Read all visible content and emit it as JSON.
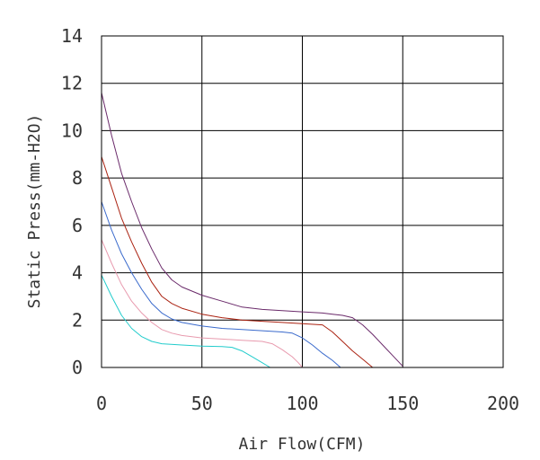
{
  "chart_data": {
    "type": "line",
    "title": "",
    "xlabel": "Air Flow(CFM)",
    "ylabel": "Static Press(mm-H2O)",
    "xlim": [
      0,
      200
    ],
    "ylim": [
      0,
      14
    ],
    "x_ticks": [
      0,
      50,
      100,
      150,
      200
    ],
    "y_ticks": [
      0,
      2,
      4,
      6,
      8,
      10,
      12,
      14
    ],
    "grid": true,
    "legend": "none",
    "series": [
      {
        "color": "#6a2a6a",
        "points": [
          [
            0,
            11.6
          ],
          [
            5,
            9.8
          ],
          [
            10,
            8.2
          ],
          [
            15,
            7.0
          ],
          [
            20,
            5.9
          ],
          [
            25,
            5.0
          ],
          [
            30,
            4.2
          ],
          [
            35,
            3.7
          ],
          [
            40,
            3.4
          ],
          [
            50,
            3.05
          ],
          [
            60,
            2.8
          ],
          [
            70,
            2.55
          ],
          [
            80,
            2.45
          ],
          [
            90,
            2.4
          ],
          [
            100,
            2.35
          ],
          [
            110,
            2.3
          ],
          [
            115,
            2.25
          ],
          [
            120,
            2.2
          ],
          [
            125,
            2.1
          ],
          [
            130,
            1.8
          ],
          [
            135,
            1.4
          ],
          [
            140,
            0.95
          ],
          [
            145,
            0.5
          ],
          [
            150,
            0.05
          ]
        ]
      },
      {
        "color": "#aa2211",
        "points": [
          [
            0,
            8.9
          ],
          [
            5,
            7.6
          ],
          [
            10,
            6.3
          ],
          [
            15,
            5.3
          ],
          [
            20,
            4.4
          ],
          [
            25,
            3.6
          ],
          [
            30,
            3.0
          ],
          [
            35,
            2.7
          ],
          [
            40,
            2.5
          ],
          [
            50,
            2.25
          ],
          [
            60,
            2.1
          ],
          [
            70,
            2.0
          ],
          [
            80,
            1.95
          ],
          [
            90,
            1.9
          ],
          [
            100,
            1.85
          ],
          [
            110,
            1.8
          ],
          [
            115,
            1.5
          ],
          [
            120,
            1.1
          ],
          [
            125,
            0.7
          ],
          [
            130,
            0.35
          ],
          [
            135,
            0.0
          ]
        ]
      },
      {
        "color": "#3a6acc",
        "points": [
          [
            0,
            7.0
          ],
          [
            5,
            5.8
          ],
          [
            10,
            4.8
          ],
          [
            15,
            4.0
          ],
          [
            20,
            3.3
          ],
          [
            25,
            2.7
          ],
          [
            30,
            2.3
          ],
          [
            35,
            2.05
          ],
          [
            40,
            1.9
          ],
          [
            50,
            1.75
          ],
          [
            60,
            1.65
          ],
          [
            70,
            1.6
          ],
          [
            80,
            1.55
          ],
          [
            90,
            1.5
          ],
          [
            95,
            1.45
          ],
          [
            100,
            1.25
          ],
          [
            105,
            0.95
          ],
          [
            110,
            0.6
          ],
          [
            115,
            0.3
          ],
          [
            119,
            0.0
          ]
        ]
      },
      {
        "color": "#e89aae",
        "points": [
          [
            0,
            5.4
          ],
          [
            5,
            4.4
          ],
          [
            10,
            3.5
          ],
          [
            15,
            2.8
          ],
          [
            20,
            2.3
          ],
          [
            25,
            1.9
          ],
          [
            30,
            1.6
          ],
          [
            35,
            1.45
          ],
          [
            40,
            1.35
          ],
          [
            50,
            1.25
          ],
          [
            60,
            1.2
          ],
          [
            70,
            1.15
          ],
          [
            80,
            1.1
          ],
          [
            85,
            1.0
          ],
          [
            90,
            0.75
          ],
          [
            95,
            0.45
          ],
          [
            98,
            0.2
          ],
          [
            100,
            0.0
          ]
        ]
      },
      {
        "color": "#22cccc",
        "points": [
          [
            0,
            3.9
          ],
          [
            5,
            3.0
          ],
          [
            10,
            2.2
          ],
          [
            15,
            1.65
          ],
          [
            20,
            1.3
          ],
          [
            25,
            1.1
          ],
          [
            30,
            1.0
          ],
          [
            40,
            0.95
          ],
          [
            50,
            0.9
          ],
          [
            60,
            0.88
          ],
          [
            65,
            0.85
          ],
          [
            70,
            0.7
          ],
          [
            75,
            0.45
          ],
          [
            80,
            0.2
          ],
          [
            84,
            0.0
          ]
        ]
      }
    ]
  }
}
